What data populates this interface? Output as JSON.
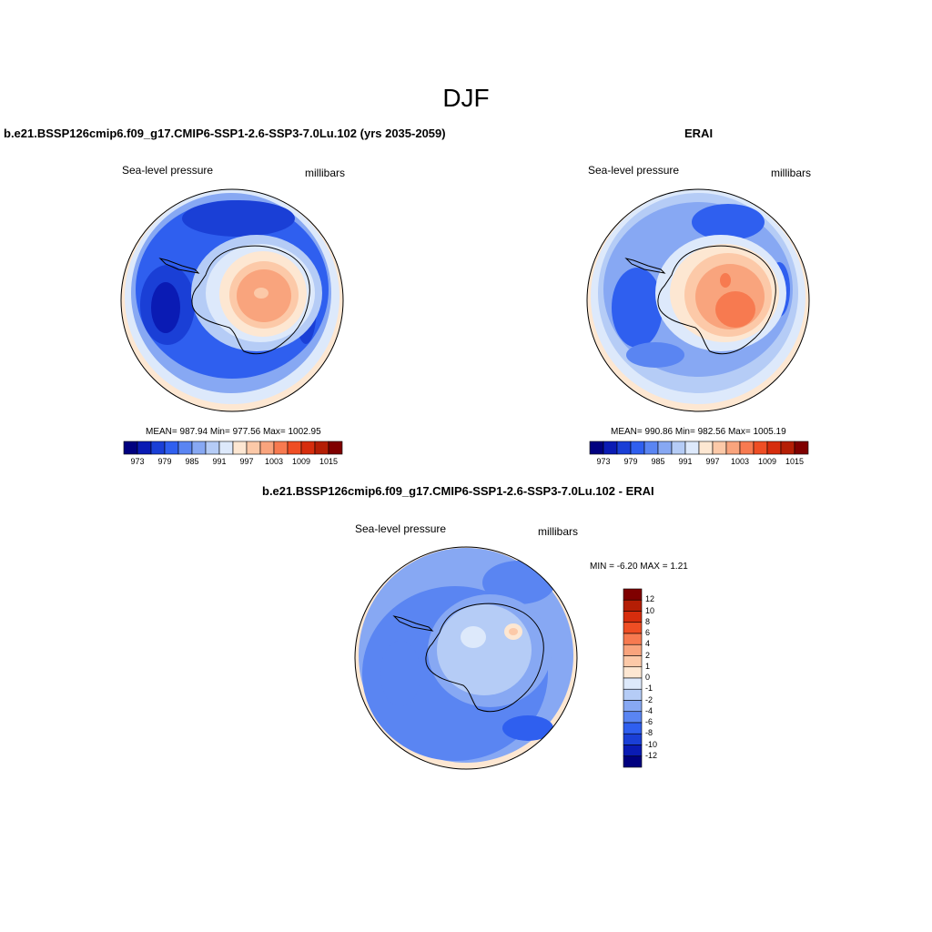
{
  "main_title": "DJF",
  "panels": [
    {
      "title": "b.e21.BSSP126cmip6.f09_g17.CMIP6-SSP1-2.6-SSP3-7.0Lu.102 (yrs 2035-2059)",
      "field_label": "Sea-level pressure",
      "units_label": "millibars",
      "stats": "MEAN= 987.94  Min= 977.56  Max= 1002.95"
    },
    {
      "title": "ERAI",
      "field_label": "Sea-level pressure",
      "units_label": "millibars",
      "stats": "MEAN= 990.86  Min= 982.56  Max= 1005.19"
    },
    {
      "title": "b.e21.BSSP126cmip6.f09_g17.CMIP6-SSP1-2.6-SSP3-7.0Lu.102 - ERAI",
      "field_label": "Sea-level pressure",
      "units_label": "millibars",
      "stats": "MIN =  -6.20 MAX =   1.21"
    }
  ],
  "abs_colorbar": {
    "colors": [
      "#00007f",
      "#0a1bb4",
      "#1a3fd6",
      "#2f5fef",
      "#5a85f2",
      "#87a8f3",
      "#b5ccf6",
      "#dde9fb",
      "#fde7d2",
      "#fcc9a8",
      "#f9a47d",
      "#f77a50",
      "#ef4e24",
      "#d62d0d",
      "#b41e05",
      "#7f0000"
    ],
    "tick_labels": [
      "973",
      "979",
      "985",
      "991",
      "997",
      "1003",
      "1009",
      "1015"
    ]
  },
  "diff_colorbar": {
    "colors": [
      "#00007f",
      "#0a1bb4",
      "#1a3fd6",
      "#2f5fef",
      "#5a85f2",
      "#87a8f3",
      "#b5ccf6",
      "#dde9fb",
      "#fde7d2",
      "#fcc9a8",
      "#f9a47d",
      "#f77a50",
      "#ef4e24",
      "#d62d0d",
      "#b41e05",
      "#7f0000"
    ],
    "tick_labels": [
      "12",
      "10",
      "8",
      "6",
      "4",
      "2",
      "1",
      "0",
      "-1",
      "-2",
      "-4",
      "-6",
      "-8",
      "-10",
      "-12"
    ]
  }
}
